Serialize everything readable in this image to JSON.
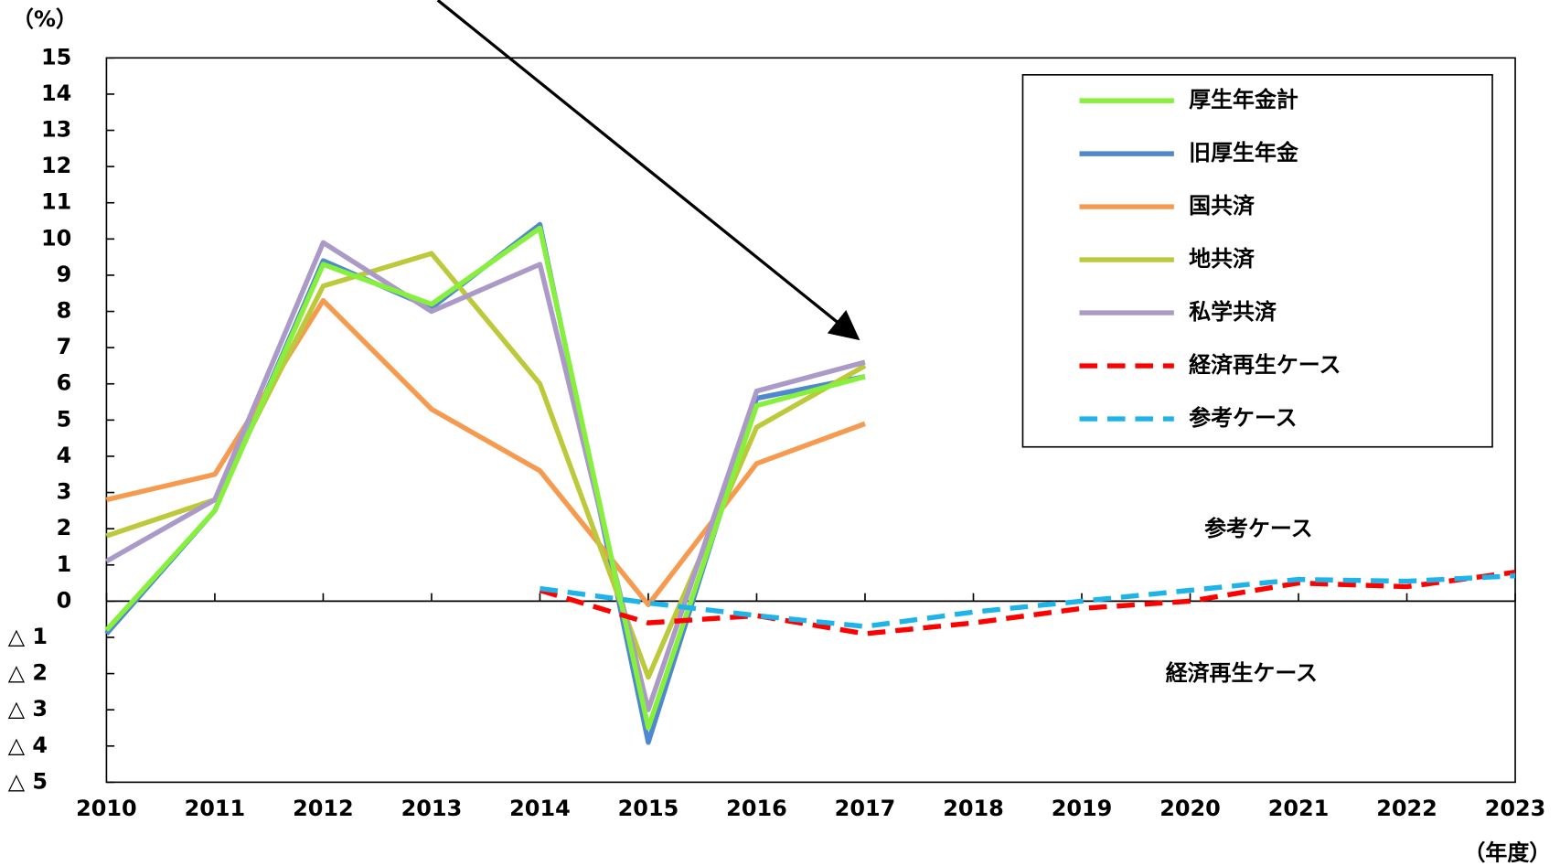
{
  "chart_data": {
    "type": "line",
    "y_label": "（%）",
    "x_label": "（年度）",
    "x": [
      2010,
      2011,
      2012,
      2013,
      2014,
      2015,
      2016,
      2017,
      2018,
      2019,
      2020,
      2021,
      2022,
      2023
    ],
    "xlim": [
      2010,
      2023
    ],
    "xticks": [
      2010,
      2011,
      2012,
      2013,
      2014,
      2015,
      2016,
      2017,
      2018,
      2019,
      2020,
      2021,
      2022,
      2023
    ],
    "ylim": [
      -5,
      15
    ],
    "yticks": [
      {
        "value": -5,
        "label": "△ 5"
      },
      {
        "value": -4,
        "label": "△ 4"
      },
      {
        "value": -3,
        "label": "△ 3"
      },
      {
        "value": -2,
        "label": "△ 2"
      },
      {
        "value": -1,
        "label": "△ 1"
      },
      0,
      1,
      2,
      3,
      4,
      5,
      6,
      7,
      8,
      9,
      10,
      11,
      12,
      13,
      14,
      15
    ],
    "series": [
      {
        "name": "旧厚生年金",
        "color": "#4f88cf",
        "dashed": false,
        "values": [
          -0.9,
          2.5,
          9.4,
          8.1,
          10.4,
          -3.9,
          5.6,
          6.2,
          null,
          null,
          null,
          null,
          null,
          null
        ]
      },
      {
        "name": "国共済",
        "color": "#f59a4f",
        "dashed": false,
        "values": [
          2.8,
          3.5,
          8.3,
          5.3,
          3.6,
          -0.1,
          3.8,
          4.9,
          null,
          null,
          null,
          null,
          null,
          null
        ]
      },
      {
        "name": "地共済",
        "color": "#bcc93a",
        "dashed": false,
        "values": [
          1.8,
          2.8,
          8.7,
          9.6,
          6.0,
          -2.1,
          4.8,
          6.5,
          null,
          null,
          null,
          null,
          null,
          null
        ]
      },
      {
        "name": "私学共済",
        "color": "#ab9ac7",
        "dashed": false,
        "values": [
          1.1,
          2.8,
          9.9,
          8.0,
          9.3,
          -3.0,
          5.8,
          6.6,
          null,
          null,
          null,
          null,
          null,
          null
        ]
      },
      {
        "name": "厚生年金計",
        "color": "#86f03c",
        "dashed": false,
        "values": [
          -0.8,
          2.5,
          9.3,
          8.2,
          10.3,
          -3.5,
          5.4,
          6.2,
          null,
          null,
          null,
          null,
          null,
          null
        ]
      },
      {
        "name": "経済再生ケース",
        "color": "#ff0000",
        "dashed": true,
        "values": [
          null,
          null,
          null,
          null,
          0.3,
          -0.6,
          -0.4,
          -0.9,
          -0.6,
          -0.2,
          0.0,
          0.5,
          0.4,
          0.8
        ]
      },
      {
        "name": "参考ケース",
        "color": "#1eb4ea",
        "dashed": true,
        "values": [
          null,
          null,
          null,
          null,
          0.35,
          -0.05,
          -0.4,
          -0.7,
          -0.3,
          0.0,
          0.3,
          0.6,
          0.55,
          0.7
        ]
      }
    ],
    "legend_order": [
      4,
      0,
      1,
      2,
      3,
      5,
      6
    ],
    "legend": "top-right",
    "annotations": [
      "参考ケース",
      "経済再生ケース"
    ]
  }
}
